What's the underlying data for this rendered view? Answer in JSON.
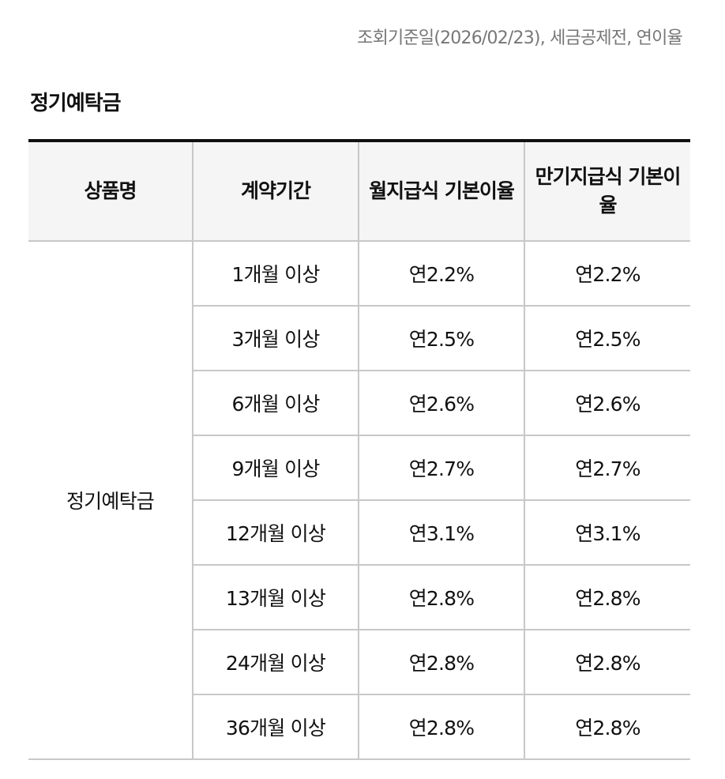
{
  "notice": "조회기준일(2026/02/23), 세금공제전, 연이율",
  "section_title": "정기예탁금",
  "table": {
    "headers": {
      "product": "상품명",
      "term": "계약기간",
      "monthly_rate": "월지급식 기본이율",
      "maturity_rate": "만기지급식 기본이율"
    },
    "product_name": "정기예탁금",
    "rows": [
      {
        "term": "1개월 이상",
        "monthly_rate": "연2.2%",
        "maturity_rate": "연2.2%"
      },
      {
        "term": "3개월 이상",
        "monthly_rate": "연2.5%",
        "maturity_rate": "연2.5%"
      },
      {
        "term": "6개월 이상",
        "monthly_rate": "연2.6%",
        "maturity_rate": "연2.6%"
      },
      {
        "term": "9개월 이상",
        "monthly_rate": "연2.7%",
        "maturity_rate": "연2.7%"
      },
      {
        "term": "12개월 이상",
        "monthly_rate": "연3.1%",
        "maturity_rate": "연3.1%"
      },
      {
        "term": "13개월 이상",
        "monthly_rate": "연2.8%",
        "maturity_rate": "연2.8%"
      },
      {
        "term": "24개월 이상",
        "monthly_rate": "연2.8%",
        "maturity_rate": "연2.8%"
      },
      {
        "term": "36개월 이상",
        "monthly_rate": "연2.8%",
        "maturity_rate": "연2.8%"
      }
    ]
  },
  "colors": {
    "header_bg": "#f5f5f5",
    "top_border": "#111111",
    "grid_line": "#c8c8c8",
    "notice_text": "#777777"
  }
}
